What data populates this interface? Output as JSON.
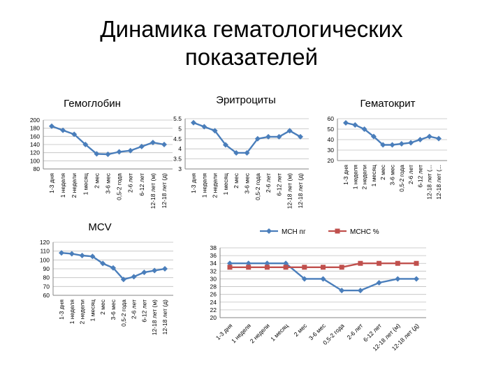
{
  "slide": {
    "title_line1": "Динамика гематологических",
    "title_line2": "показателей"
  },
  "chart_data": [
    {
      "id": "hemoglobin",
      "type": "line",
      "title": "Гемоглобин",
      "categories": [
        "1-3 дня",
        "1 неделя",
        "2 недели",
        "1 месяц",
        "2 мес",
        "3-6 мес",
        "0,5-2 года",
        "2-6 лет",
        "6-12 лет",
        "12-18 лет (м)",
        "12-18 лет (д)"
      ],
      "series": [
        {
          "values": [
            185,
            175,
            165,
            140,
            117,
            116,
            122,
            125,
            135,
            145,
            140
          ],
          "color": "#4a7ebb",
          "marker": "diamond"
        }
      ],
      "ylim": [
        80,
        200
      ],
      "yticks": [
        80,
        100,
        120,
        140,
        160,
        180,
        200
      ],
      "grid": true
    },
    {
      "id": "erythrocytes",
      "type": "line",
      "title": "Эритроциты",
      "categories": [
        "1-3 дня",
        "1 неделя",
        "2 недели",
        "1 месяц",
        "2 мес",
        "3-6 мес",
        "0,5-2 года",
        "2-6 лет",
        "6-12 лет",
        "12-18 лет (м)",
        "12-18 лет (д)"
      ],
      "series": [
        {
          "values": [
            5.3,
            5.1,
            4.9,
            4.2,
            3.8,
            3.8,
            4.5,
            4.6,
            4.6,
            4.9,
            4.6
          ],
          "color": "#4a7ebb",
          "marker": "diamond"
        }
      ],
      "ylim": [
        3,
        5.5
      ],
      "yticks": [
        3,
        3.5,
        4,
        4.5,
        5,
        5.5
      ],
      "grid": true
    },
    {
      "id": "hematocrit",
      "type": "line",
      "title": "Гематокрит",
      "categories": [
        "1-3 дня",
        "1 неделя",
        "2 недели",
        "1 месяц",
        "2 мес",
        "3-6 мес",
        "0,5-2 года",
        "2-6 лет",
        "6-12 лет",
        "12-18 лет (...",
        "12-18 лет (..."
      ],
      "series": [
        {
          "values": [
            56,
            54,
            50,
            43,
            35,
            35,
            36,
            37,
            40,
            43,
            41
          ],
          "color": "#4a7ebb",
          "marker": "diamond"
        }
      ],
      "ylim": [
        20,
        60
      ],
      "yticks": [
        20,
        30,
        40,
        50,
        60
      ],
      "grid": true
    },
    {
      "id": "mcv",
      "type": "line",
      "title": "MCV",
      "categories": [
        "1-3 дня",
        "1 неделя",
        "2 недели",
        "1 месяц",
        "2 мес",
        "3-6 мес",
        "0,5-2 года",
        "2-6 лет",
        "6-12 лет",
        "12-18 лет (м)",
        "12-18 лет (д)"
      ],
      "series": [
        {
          "values": [
            108,
            107,
            105,
            104,
            96,
            91,
            78,
            81,
            86,
            88,
            90
          ],
          "color": "#4a7ebb",
          "marker": "diamond"
        }
      ],
      "ylim": [
        60,
        120
      ],
      "yticks": [
        60,
        70,
        80,
        90,
        100,
        110,
        120
      ],
      "grid": true
    },
    {
      "id": "mch-mchc",
      "type": "line",
      "title": "",
      "categories": [
        "1-3 дня",
        "1 неделя",
        "2 недели",
        "1 месяц",
        "2 мес",
        "3-6 мес",
        "0,5-2 года",
        "2-6 лет",
        "6-12 лет",
        "12-18 лет (м)",
        "12-18 лет (д)"
      ],
      "series": [
        {
          "name": "MCH пг",
          "values": [
            34,
            34,
            34,
            34,
            30,
            30,
            27,
            27,
            29,
            30,
            30
          ],
          "color": "#4a7ebb",
          "marker": "diamond"
        },
        {
          "name": "MCHC %",
          "values": [
            33,
            33,
            33,
            33,
            33,
            33,
            33,
            34,
            34,
            34,
            34
          ],
          "color": "#c0504d",
          "marker": "square"
        }
      ],
      "ylim": [
        20,
        38
      ],
      "yticks": [
        20,
        22,
        24,
        26,
        28,
        30,
        32,
        34,
        36,
        38
      ],
      "legend": "top",
      "grid": true
    }
  ]
}
